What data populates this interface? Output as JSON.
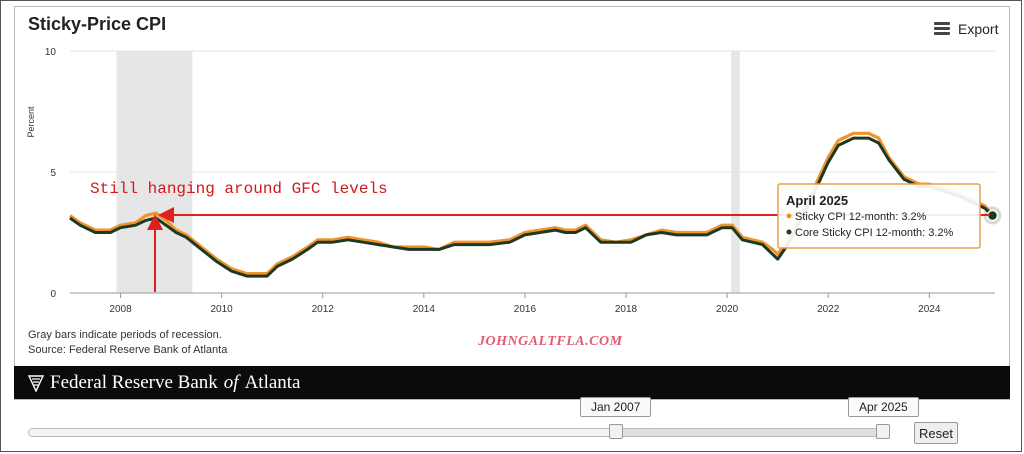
{
  "title": "Sticky-Price CPI",
  "export_label": "Export",
  "notes": [
    "Gray bars indicate periods of recession.",
    "Source: Federal Reserve Bank of Atlanta"
  ],
  "watermark": "JOHNGALTFLA.COM",
  "logo_text": {
    "main": "Federal Reserve Bank",
    "of": "of",
    "end": "Atlanta"
  },
  "annotation_text": "Still hanging around GFC levels",
  "navigator": {
    "start_label": "Jan 2007",
    "end_label": "Apr 2025",
    "reset_label": "Reset"
  },
  "tooltip": {
    "title": "April 2025",
    "rows": [
      {
        "label": "Sticky CPI 12-month: 3.2%",
        "color": "#f0932a"
      },
      {
        "label": "Core Sticky CPI 12-month: 3.2%",
        "color": "#1c3a22"
      }
    ]
  },
  "chart_data": {
    "type": "line",
    "title": "Sticky-Price CPI",
    "ylabel": "Percent",
    "xlim": [
      2007.0,
      2025.3
    ],
    "ylim": [
      0,
      10
    ],
    "yticks": [
      "0",
      "5",
      "10"
    ],
    "xticks": [
      "2008",
      "2010",
      "2012",
      "2014",
      "2016",
      "2018",
      "2020",
      "2022",
      "2024"
    ],
    "recessions": [
      [
        2007.92,
        2009.42
      ],
      [
        2020.08,
        2020.25
      ]
    ],
    "colors": {
      "sticky": "#f0932a",
      "core": "#1c3a22"
    },
    "series": [
      {
        "name": "Sticky CPI 12-month",
        "x": [
          2007.0,
          2007.2,
          2007.5,
          2007.8,
          2008.0,
          2008.3,
          2008.5,
          2008.7,
          2008.9,
          2009.1,
          2009.3,
          2009.6,
          2009.9,
          2010.2,
          2010.5,
          2010.9,
          2011.1,
          2011.4,
          2011.7,
          2011.9,
          2012.2,
          2012.5,
          2012.8,
          2013.1,
          2013.4,
          2013.7,
          2014.0,
          2014.3,
          2014.6,
          2015.0,
          2015.3,
          2015.7,
          2016.0,
          2016.3,
          2016.6,
          2016.8,
          2017.0,
          2017.2,
          2017.5,
          2017.8,
          2018.1,
          2018.4,
          2018.7,
          2019.0,
          2019.3,
          2019.6,
          2019.9,
          2020.1,
          2020.3,
          2020.5,
          2020.7,
          2020.9,
          2021.0,
          2021.2,
          2021.4,
          2021.6,
          2021.8,
          2022.0,
          2022.2,
          2022.5,
          2022.8,
          2023.0,
          2023.2,
          2023.5,
          2023.8,
          2024.0,
          2024.3,
          2024.6,
          2024.9,
          2025.1,
          2025.25
        ],
        "y": [
          3.2,
          2.9,
          2.6,
          2.6,
          2.8,
          2.9,
          3.2,
          3.3,
          3.0,
          2.6,
          2.4,
          1.9,
          1.4,
          1.0,
          0.8,
          0.8,
          1.2,
          1.5,
          1.9,
          2.2,
          2.2,
          2.3,
          2.2,
          2.1,
          1.9,
          1.9,
          1.9,
          1.8,
          2.1,
          2.1,
          2.1,
          2.2,
          2.5,
          2.6,
          2.7,
          2.6,
          2.6,
          2.8,
          2.2,
          2.1,
          2.2,
          2.4,
          2.6,
          2.5,
          2.5,
          2.5,
          2.8,
          2.8,
          2.3,
          2.2,
          2.1,
          1.8,
          1.6,
          2.2,
          3.0,
          3.8,
          4.7,
          5.6,
          6.3,
          6.6,
          6.6,
          6.4,
          5.6,
          4.8,
          4.5,
          4.5,
          4.3,
          4.1,
          3.8,
          3.6,
          3.2
        ]
      },
      {
        "name": "Core Sticky CPI 12-month",
        "x": [
          2007.0,
          2007.2,
          2007.5,
          2007.8,
          2008.0,
          2008.3,
          2008.5,
          2008.7,
          2008.9,
          2009.1,
          2009.3,
          2009.6,
          2009.9,
          2010.2,
          2010.5,
          2010.9,
          2011.1,
          2011.4,
          2011.7,
          2011.9,
          2012.2,
          2012.5,
          2012.8,
          2013.1,
          2013.4,
          2013.7,
          2014.0,
          2014.3,
          2014.6,
          2015.0,
          2015.3,
          2015.7,
          2016.0,
          2016.3,
          2016.6,
          2016.8,
          2017.0,
          2017.2,
          2017.5,
          2017.8,
          2018.1,
          2018.4,
          2018.7,
          2019.0,
          2019.3,
          2019.6,
          2019.9,
          2020.1,
          2020.3,
          2020.5,
          2020.7,
          2020.9,
          2021.0,
          2021.2,
          2021.4,
          2021.6,
          2021.8,
          2022.0,
          2022.2,
          2022.5,
          2022.8,
          2023.0,
          2023.2,
          2023.5,
          2023.8,
          2024.0,
          2024.3,
          2024.6,
          2024.9,
          2025.1,
          2025.25
        ],
        "y": [
          3.1,
          2.8,
          2.5,
          2.5,
          2.7,
          2.8,
          3.0,
          3.1,
          2.8,
          2.5,
          2.3,
          1.8,
          1.3,
          0.9,
          0.7,
          0.7,
          1.1,
          1.4,
          1.8,
          2.1,
          2.1,
          2.2,
          2.1,
          2.0,
          1.9,
          1.8,
          1.8,
          1.8,
          2.0,
          2.0,
          2.0,
          2.1,
          2.4,
          2.5,
          2.6,
          2.5,
          2.5,
          2.7,
          2.1,
          2.1,
          2.1,
          2.4,
          2.5,
          2.4,
          2.4,
          2.4,
          2.7,
          2.7,
          2.2,
          2.1,
          2.0,
          1.6,
          1.4,
          2.0,
          2.8,
          3.6,
          4.5,
          5.4,
          6.1,
          6.4,
          6.4,
          6.2,
          5.5,
          4.7,
          4.4,
          4.4,
          4.2,
          4.0,
          3.7,
          3.5,
          3.2
        ]
      }
    ]
  }
}
